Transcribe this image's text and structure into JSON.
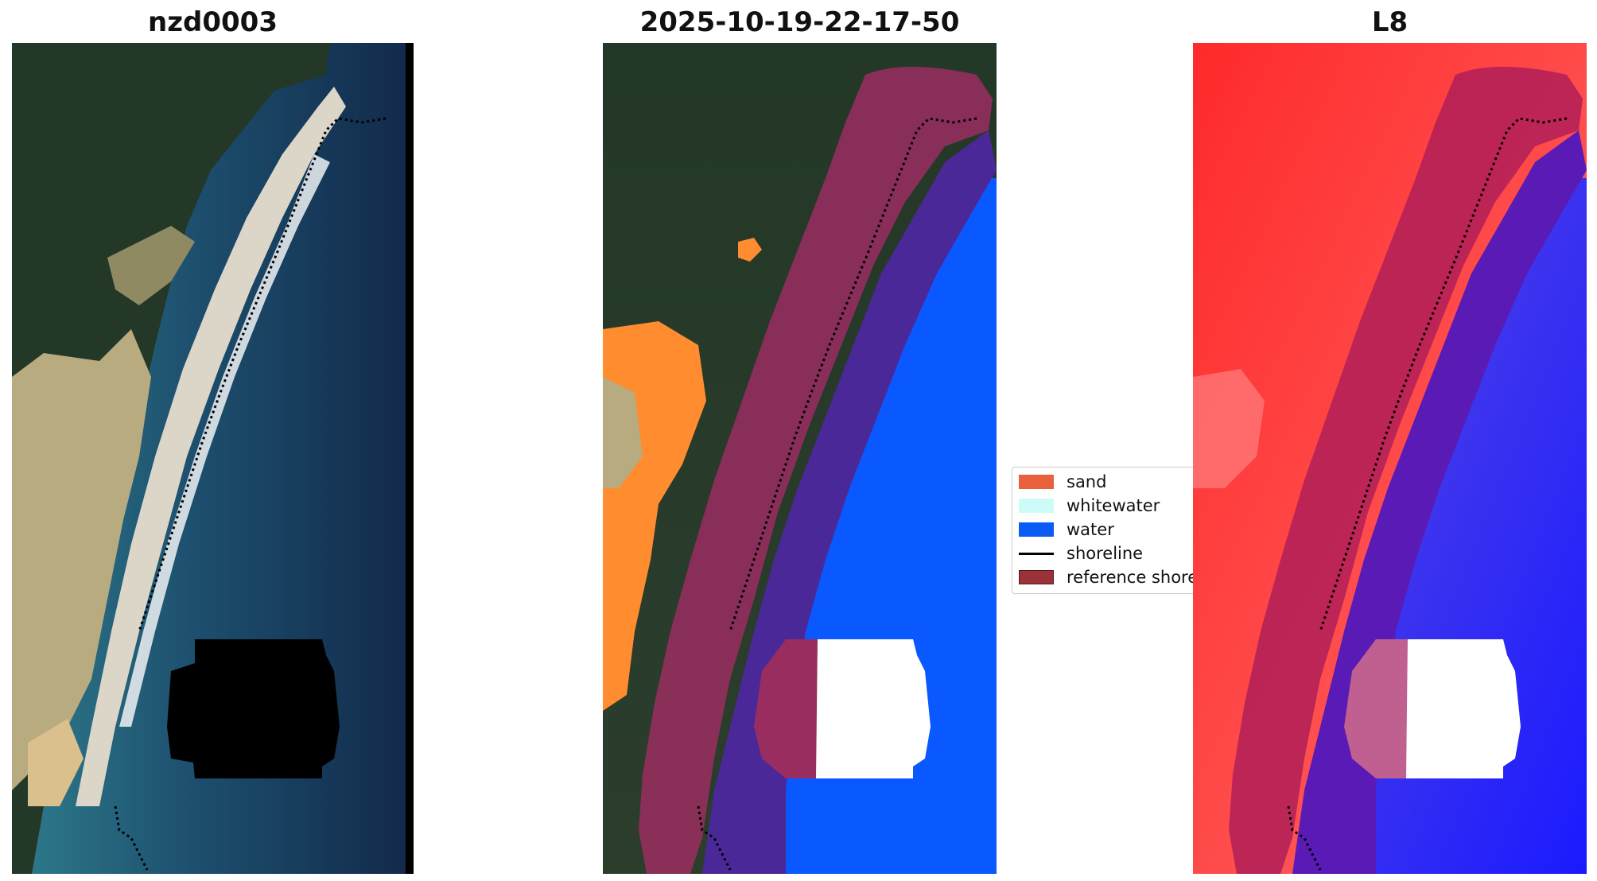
{
  "panels": {
    "left_title": "nzd0003",
    "middle_title": "2025-10-19-22-17-50",
    "right_title": "L8"
  },
  "legend": {
    "items": [
      {
        "label": "sand",
        "kind": "patch",
        "color": "#e8613c"
      },
      {
        "label": "whitewater",
        "kind": "patch",
        "color": "#ccfbf8"
      },
      {
        "label": "water",
        "kind": "patch",
        "color": "#0a5cf5"
      },
      {
        "label": "shoreline",
        "kind": "line",
        "color": "#000000"
      },
      {
        "label": "reference shore",
        "kind": "patch",
        "color": "#9c3239"
      }
    ]
  },
  "colors": {
    "ocean_dark": "#12294a",
    "ocean_teal": "#2d6f86",
    "land_dark": "#243828",
    "dunes": "#b9ad84",
    "sand_mask": "#ff8c2e",
    "water_mask": "#0a58ff",
    "reference_buffer": "#8c1e55",
    "buffer_over_water": "#4a2a9a",
    "cloud_mask": "#ffffff",
    "l8_red": "#ff3a3a",
    "l8_blue": "#1a22ff"
  }
}
